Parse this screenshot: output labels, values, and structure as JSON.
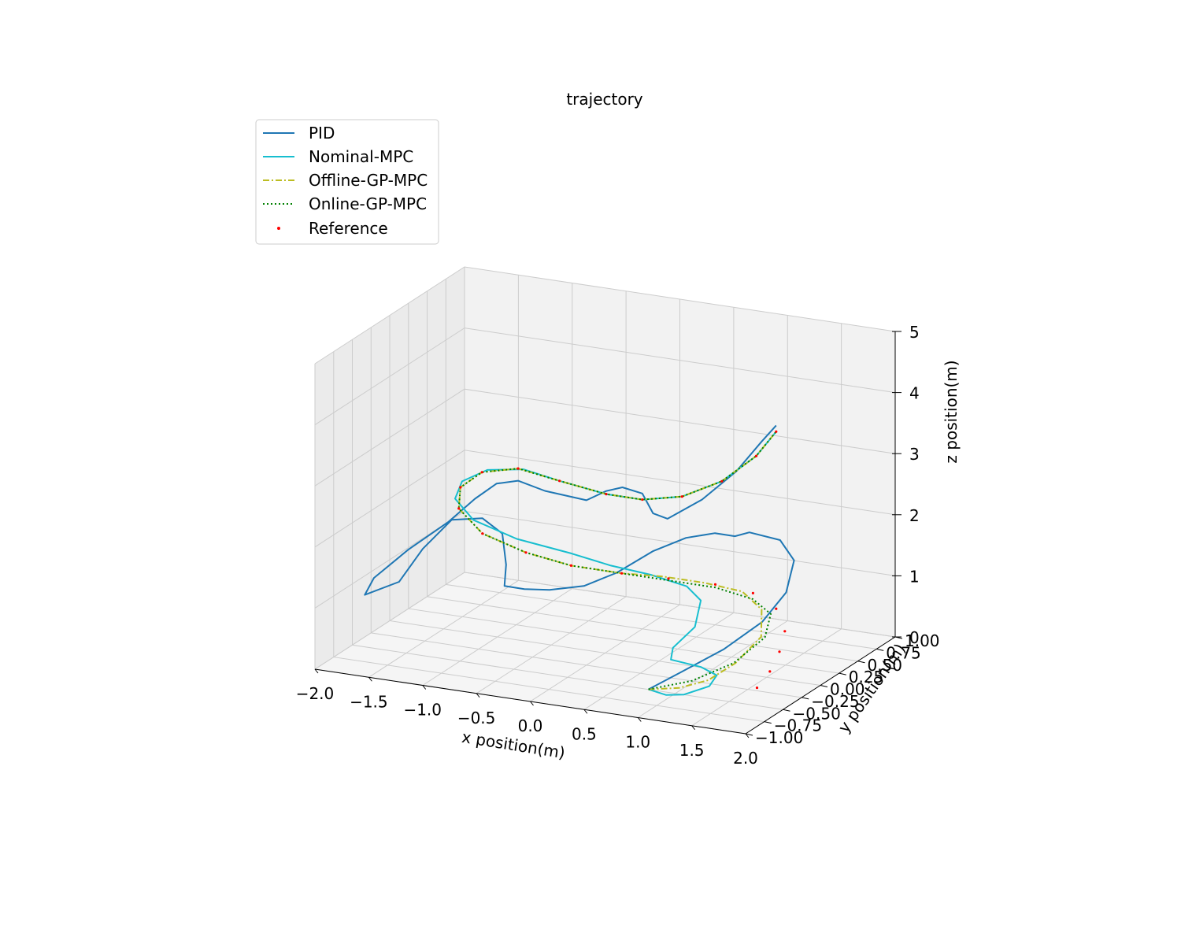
{
  "chart_data": {
    "type": "line",
    "projection": "3d",
    "title": "trajectory",
    "xlabel": "x position(m)",
    "ylabel": "y position(m)",
    "zlabel": "z position(m)",
    "xlim": [
      -2.0,
      2.0
    ],
    "ylim": [
      -1.0,
      1.0
    ],
    "zlim": [
      0,
      5
    ],
    "x_ticks": [
      "−2.0",
      "−1.5",
      "−1.0",
      "−0.5",
      "0.0",
      "0.5",
      "1.0",
      "1.5",
      "2.0"
    ],
    "y_ticks": [
      "−1.00",
      "−0.75",
      "−0.50",
      "−0.25",
      "0.00",
      "0.25",
      "0.50",
      "0.75",
      "1.00"
    ],
    "z_ticks": [
      "0",
      "1",
      "2",
      "3",
      "4",
      "5"
    ],
    "grid": true,
    "legend_position": "top-left",
    "series": [
      {
        "name": "PID",
        "color": "#1f77b4",
        "style": "solid",
        "points": [
          [
            0.75,
            -0.5,
            0.0
          ],
          [
            0.9,
            -0.3,
            0.15
          ],
          [
            1.1,
            0.0,
            0.35
          ],
          [
            1.25,
            0.3,
            0.6
          ],
          [
            1.3,
            0.55,
            0.9
          ],
          [
            1.2,
            0.8,
            1.2
          ],
          [
            1.0,
            0.9,
            1.4
          ],
          [
            0.75,
            0.85,
            1.5
          ],
          [
            0.65,
            0.8,
            1.45
          ],
          [
            0.5,
            0.75,
            1.5
          ],
          [
            0.3,
            0.65,
            1.45
          ],
          [
            0.1,
            0.5,
            1.3
          ],
          [
            -0.1,
            0.3,
            1.05
          ],
          [
            -0.3,
            0.15,
            0.9
          ],
          [
            -0.55,
            0.05,
            0.85
          ],
          [
            -0.75,
            0.0,
            0.85
          ],
          [
            -0.9,
            -0.05,
            0.9
          ],
          [
            -0.85,
            -0.1,
            1.3
          ],
          [
            -0.85,
            -0.15,
            1.85
          ],
          [
            -1.0,
            -0.2,
            2.1
          ],
          [
            -1.25,
            -0.25,
            2.05
          ],
          [
            -1.45,
            -0.35,
            1.6
          ],
          [
            -1.6,
            -0.45,
            1.1
          ],
          [
            -1.85,
            -0.55,
            0.9
          ],
          [
            -1.8,
            -0.5,
            1.15
          ],
          [
            -1.55,
            -0.4,
            1.6
          ],
          [
            -1.25,
            -0.3,
            2.05
          ],
          [
            -1.0,
            -0.3,
            2.5
          ],
          [
            -0.8,
            -0.3,
            2.8
          ],
          [
            -0.6,
            -0.3,
            2.9
          ],
          [
            -0.35,
            -0.3,
            2.8
          ],
          [
            0.0,
            -0.25,
            2.7
          ],
          [
            0.15,
            -0.2,
            2.85
          ],
          [
            0.3,
            -0.2,
            2.95
          ],
          [
            0.45,
            -0.15,
            2.85
          ],
          [
            0.55,
            -0.15,
            2.55
          ],
          [
            0.65,
            -0.1,
            2.45
          ],
          [
            0.9,
            0.0,
            2.75
          ],
          [
            1.15,
            0.1,
            3.2
          ],
          [
            1.35,
            0.15,
            3.7
          ],
          [
            1.45,
            0.2,
            3.95
          ]
        ]
      },
      {
        "name": "Nominal-MPC",
        "color": "#17becf",
        "style": "solid",
        "points": [
          [
            0.75,
            -0.5,
            0.0
          ],
          [
            0.95,
            -0.55,
            0.0
          ],
          [
            1.15,
            -0.6,
            0.1
          ],
          [
            1.35,
            -0.55,
            0.25
          ],
          [
            1.35,
            -0.45,
            0.35
          ],
          [
            1.1,
            -0.3,
            0.3
          ],
          [
            0.75,
            -0.2,
            0.25
          ],
          [
            0.7,
            -0.1,
            0.35
          ],
          [
            0.8,
            0.05,
            0.6
          ],
          [
            0.75,
            0.2,
            0.9
          ],
          [
            0.55,
            0.3,
            1.0
          ],
          [
            0.25,
            0.25,
            1.15
          ],
          [
            -0.05,
            0.15,
            1.3
          ],
          [
            -0.35,
            0.05,
            1.5
          ],
          [
            -0.75,
            -0.1,
            1.75
          ],
          [
            -1.05,
            -0.25,
            2.1
          ],
          [
            -1.15,
            -0.35,
            2.5
          ],
          [
            -1.05,
            -0.4,
            2.85
          ],
          [
            -0.85,
            -0.35,
            3.05
          ],
          [
            -0.55,
            -0.3,
            3.1
          ],
          [
            -0.25,
            -0.25,
            2.95
          ],
          [
            0.15,
            -0.2,
            2.8
          ],
          [
            0.45,
            -0.15,
            2.75
          ],
          [
            0.75,
            -0.05,
            2.8
          ],
          [
            1.05,
            0.05,
            3.05
          ],
          [
            1.3,
            0.15,
            3.45
          ],
          [
            1.45,
            0.2,
            3.85
          ]
        ]
      },
      {
        "name": "Offline-GP-MPC",
        "color": "#bcbd22",
        "style": "dashdot",
        "points": [
          [
            0.75,
            -0.5,
            0.0
          ],
          [
            1.0,
            -0.45,
            0.05
          ],
          [
            1.2,
            -0.35,
            0.15
          ],
          [
            1.35,
            -0.2,
            0.35
          ],
          [
            1.45,
            0.0,
            0.65
          ],
          [
            1.35,
            0.15,
            0.95
          ],
          [
            1.1,
            0.25,
            1.1
          ],
          [
            0.75,
            0.25,
            1.15
          ],
          [
            0.4,
            0.2,
            1.2
          ],
          [
            0.05,
            0.15,
            1.2
          ],
          [
            -0.35,
            0.05,
            1.3
          ],
          [
            -0.7,
            -0.05,
            1.5
          ],
          [
            -1.0,
            -0.2,
            1.85
          ],
          [
            -1.15,
            -0.3,
            2.3
          ],
          [
            -1.1,
            -0.35,
            2.7
          ],
          [
            -0.9,
            -0.35,
            3.0
          ],
          [
            -0.6,
            -0.3,
            3.1
          ],
          [
            -0.25,
            -0.25,
            2.95
          ],
          [
            0.15,
            -0.2,
            2.8
          ],
          [
            0.45,
            -0.15,
            2.75
          ],
          [
            0.75,
            -0.05,
            2.8
          ],
          [
            1.05,
            0.05,
            3.05
          ],
          [
            1.3,
            0.15,
            3.45
          ],
          [
            1.45,
            0.2,
            3.85
          ]
        ]
      },
      {
        "name": "Online-GP-MPC",
        "color": "#008000",
        "style": "dotted",
        "points": [
          [
            0.75,
            -0.5,
            0.0
          ],
          [
            1.05,
            -0.35,
            0.1
          ],
          [
            1.3,
            -0.15,
            0.3
          ],
          [
            1.45,
            0.05,
            0.6
          ],
          [
            1.4,
            0.2,
            0.85
          ],
          [
            1.2,
            0.25,
            1.0
          ],
          [
            0.85,
            0.25,
            1.1
          ],
          [
            0.45,
            0.2,
            1.15
          ],
          [
            0.05,
            0.15,
            1.2
          ],
          [
            -0.35,
            0.05,
            1.3
          ],
          [
            -0.7,
            -0.05,
            1.5
          ],
          [
            -1.0,
            -0.2,
            1.85
          ],
          [
            -1.15,
            -0.3,
            2.3
          ],
          [
            -1.1,
            -0.35,
            2.7
          ],
          [
            -0.9,
            -0.35,
            3.0
          ],
          [
            -0.6,
            -0.3,
            3.1
          ],
          [
            -0.25,
            -0.25,
            2.95
          ],
          [
            0.15,
            -0.2,
            2.8
          ],
          [
            0.45,
            -0.15,
            2.75
          ],
          [
            0.75,
            -0.05,
            2.8
          ],
          [
            1.05,
            0.05,
            3.05
          ],
          [
            1.3,
            0.15,
            3.45
          ],
          [
            1.45,
            0.2,
            3.85
          ]
        ]
      },
      {
        "name": "Reference",
        "color": "#ff0000",
        "style": "scatter",
        "points": [
          [
            1.55,
            -0.2,
            0.0
          ],
          [
            1.6,
            -0.1,
            0.2
          ],
          [
            1.62,
            0.0,
            0.45
          ],
          [
            1.6,
            0.1,
            0.7
          ],
          [
            1.45,
            0.2,
            0.95
          ],
          [
            1.2,
            0.25,
            1.1
          ],
          [
            0.85,
            0.25,
            1.15
          ],
          [
            0.45,
            0.2,
            1.18
          ],
          [
            0.05,
            0.15,
            1.2
          ],
          [
            -0.35,
            0.05,
            1.3
          ],
          [
            -0.7,
            -0.05,
            1.5
          ],
          [
            -1.0,
            -0.2,
            1.85
          ],
          [
            -1.15,
            -0.3,
            2.3
          ],
          [
            -1.1,
            -0.35,
            2.7
          ],
          [
            -0.9,
            -0.35,
            3.0
          ],
          [
            -0.6,
            -0.3,
            3.1
          ],
          [
            -0.25,
            -0.25,
            2.95
          ],
          [
            0.15,
            -0.2,
            2.8
          ],
          [
            0.45,
            -0.15,
            2.75
          ],
          [
            0.75,
            -0.05,
            2.8
          ],
          [
            1.05,
            0.05,
            3.05
          ],
          [
            1.3,
            0.15,
            3.45
          ],
          [
            1.45,
            0.2,
            3.85
          ]
        ]
      }
    ]
  }
}
